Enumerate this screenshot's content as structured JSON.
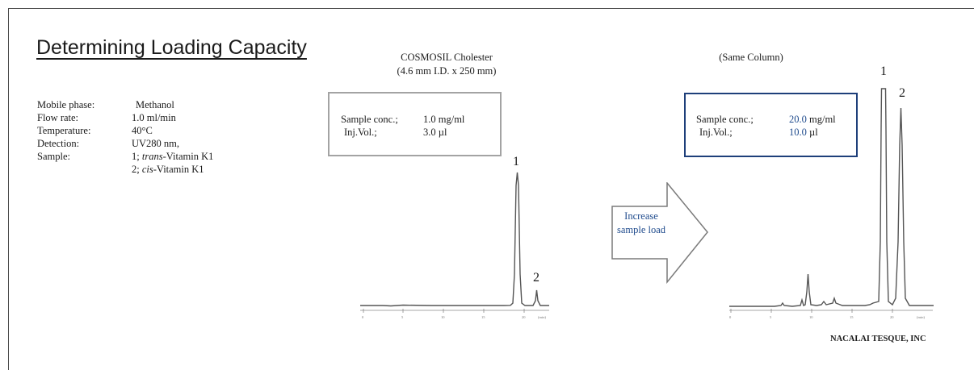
{
  "title": "Determining Loading Capacity",
  "conditions": [
    {
      "label": "Mobile phase:",
      "value": "Methanol"
    },
    {
      "label": "Flow rate:",
      "value": "1.0 ml/min"
    },
    {
      "label": "Temperature:",
      "value": "40°C"
    },
    {
      "label": "Detection:",
      "value": "UV280 nm,"
    },
    {
      "label": "Sample:",
      "value_prefix": "1; ",
      "value_em": "trans",
      "value_suffix": "-Vitamin K1"
    },
    {
      "label": "",
      "value_prefix": "2; ",
      "value_em": "cis",
      "value_suffix": "-Vitamin K1"
    }
  ],
  "column": {
    "name": "COSMOSIL Cholester",
    "dims": "(4.6 mm I.D. x 250 mm)",
    "same_label": "(Same Column)"
  },
  "box_low": {
    "conc_label": "Sample conc.;",
    "conc_value": "1.0 mg/ml",
    "vol_label": "Inj.Vol.;",
    "vol_value": "3.0 µl"
  },
  "box_high": {
    "conc_label": "Sample conc.;",
    "conc_number": "20.0",
    "conc_unit": " mg/ml",
    "vol_label": "Inj.Vol.;",
    "vol_number": "10.0",
    "vol_unit": " µl"
  },
  "arrow": {
    "line1": "Increase",
    "line2": "sample load"
  },
  "peak_labels": {
    "p1": "1",
    "p2": "2"
  },
  "axis_ticks": [
    "0",
    "5",
    "10",
    "15",
    "20",
    "(min)"
  ],
  "footer": "NACALAI TESQUE, INC",
  "colors": {
    "frame": "#4a4a4a",
    "box_low": "#a3a3a3",
    "box_high": "#1e3f7a",
    "highlight": "#1e4a8c",
    "trace": "#555555"
  }
}
